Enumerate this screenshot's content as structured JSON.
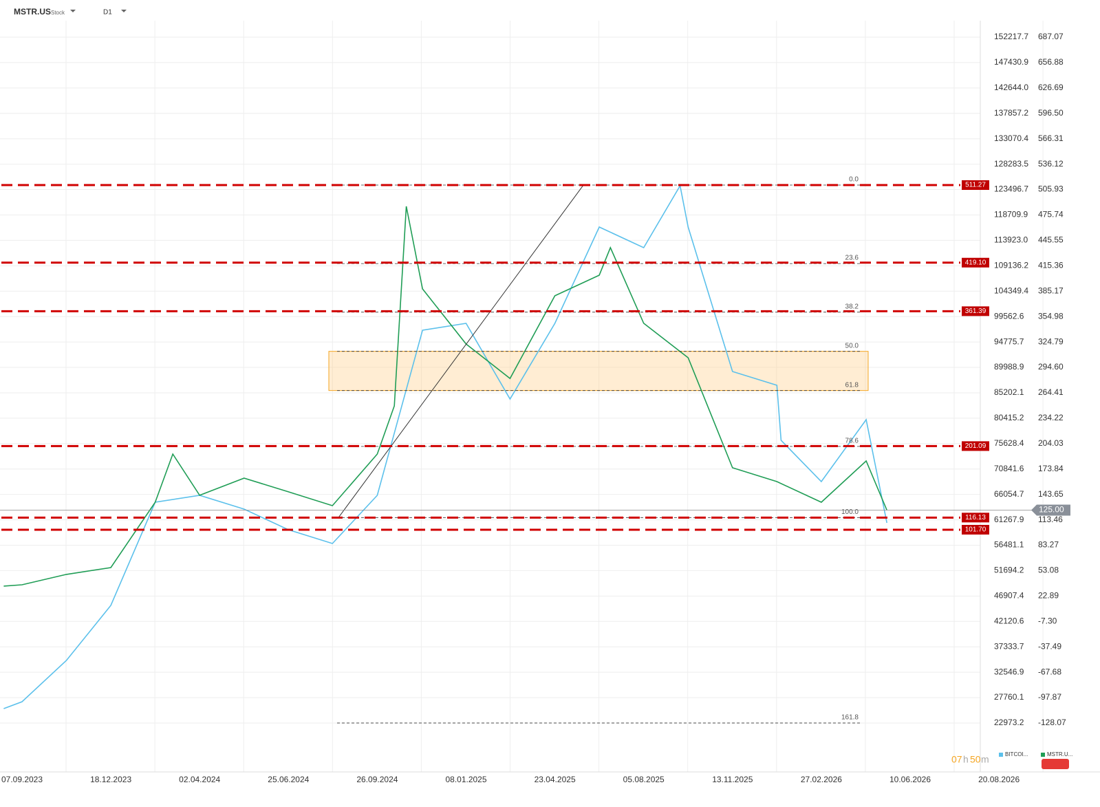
{
  "chart_data": {
    "type": "line",
    "symbol": "MSTR.US",
    "instrument_type": "Stock",
    "interval": "D1",
    "timer": {
      "hours": "07",
      "h": "h",
      "minutes": "50",
      "m": "m"
    },
    "ylim": [
      -186.12,
      706.69
    ],
    "yticks": [
      687.07,
      656.88,
      626.69,
      {
        "value": 596.5,
        "label": "596.50"
      },
      566.31,
      536.12,
      505.93,
      475.74,
      445.55,
      415.36,
      385.17,
      354.98,
      324.79,
      {
        "value": 294.6,
        "label": "294.60"
      },
      264.41,
      234.22,
      204.03,
      173.84,
      143.65,
      113.46,
      83.27,
      53.08,
      22.89,
      {
        "value": -7.3,
        "label": "-7.30"
      },
      -37.49,
      -67.68,
      -97.87,
      -128.07
    ],
    "y2lim": [
      13769,
      155329
    ],
    "y2ticks": [
      152217.7,
      147430.9,
      {
        "value": 142644,
        "label": "142644.0"
      },
      137857.2,
      133070.4,
      128283.5,
      123496.7,
      118709.9,
      {
        "value": 113923,
        "label": "113923.0"
      },
      109136.2,
      104349.4,
      99562.6,
      94775.7,
      89988.9,
      85202.1,
      80415.2,
      75628.4,
      70841.6,
      66054.7,
      61267.9,
      56481.1,
      51694.2,
      46907.4,
      42120.6,
      37333.7,
      32546.9,
      27760.1,
      22973.2
    ],
    "xticks": [
      "07.09.2023",
      "18.12.2023",
      "02.04.2024",
      "25.06.2024",
      "26.09.2024",
      "08.01.2025",
      "23.04.2025",
      "05.08.2025",
      "13.11.2025",
      "27.02.2026",
      "10.06.2026",
      "20.08.2026"
    ],
    "grid": true,
    "series": [
      {
        "name": "BITCOI...",
        "color": "#5bc0eb",
        "axis": "y2",
        "x": [
          "17.08.2023",
          "07.09.2023",
          "28.10.2023",
          "18.12.2023",
          "09.02.2024",
          "02.04.2024",
          "14.05.2024",
          "25.06.2024",
          "10.08.2024",
          "26.09.2024",
          "18.11.2024",
          "08.01.2025",
          "01.03.2025",
          "23.04.2025",
          "14.06.2025",
          "05.08.2025",
          "15.09.2025",
          "24.09.2025",
          "13.11.2025",
          "05.01.2026",
          "10.01.2026",
          "27.02.2026",
          "20.04.2026",
          "14.05.2026"
        ],
        "values": [
          25699,
          26995,
          34773,
          45144,
          64588,
          65884,
          63292,
          59403,
          56810,
          65884,
          96996,
          98292,
          84033,
          98292,
          116440,
          112551,
          124218,
          116440,
          89218,
          86625,
          76255,
          68477,
          80144,
          60699
        ]
      },
      {
        "name": "MSTR.U...",
        "color": "#1f9d55",
        "x": [
          "17.08.2023",
          "07.09.2023",
          "28.10.2023",
          "18.12.2023",
          "09.02.2024",
          "01.03.2024",
          "02.04.2024",
          "14.05.2024",
          "25.06.2024",
          "10.08.2024",
          "26.09.2024",
          "16.10.2024",
          "30.10.2024",
          "18.11.2024",
          "08.01.2025",
          "01.03.2025",
          "23.04.2025",
          "14.06.2025",
          "27.06.2025",
          "05.08.2025",
          "24.09.2025",
          "13.11.2025",
          "05.01.2026",
          "27.02.2026",
          "20.04.2026",
          "14.05.2026"
        ],
        "values": [
          34.7,
          36.3,
          48.6,
          56.7,
          134.4,
          191.6,
          142.6,
          163.0,
          146.7,
          130.3,
          191.6,
          248.8,
          486.0,
          387.9,
          322.4,
          281.5,
          379.7,
          404.2,
          437.0,
          347.0,
          306.1,
          175.3,
          158.9,
          134.4,
          183.4,
          125.0
        ]
      }
    ],
    "levels": [
      511.27,
      {
        "value": 419.1,
        "label": "419.10"
      },
      361.39,
      201.09,
      116.13,
      {
        "value": 101.7,
        "label": "101.70"
      }
    ],
    "current_price": {
      "value": 125,
      "label": "125.00"
    },
    "fib_levels": [
      {
        "value": 511.27,
        "label": "0.0"
      },
      {
        "value": 418.0,
        "label": "23.6"
      },
      {
        "value": 360.3,
        "label": "38.2"
      },
      {
        "value": 313.7,
        "label": "50.0"
      },
      {
        "value": 267.1,
        "label": "61.8"
      },
      {
        "value": 200.7,
        "label": "78.6"
      },
      {
        "value": 116.13,
        "label": "100.0"
      },
      {
        "value": -128.0,
        "label": "161.8"
      }
    ]
  }
}
